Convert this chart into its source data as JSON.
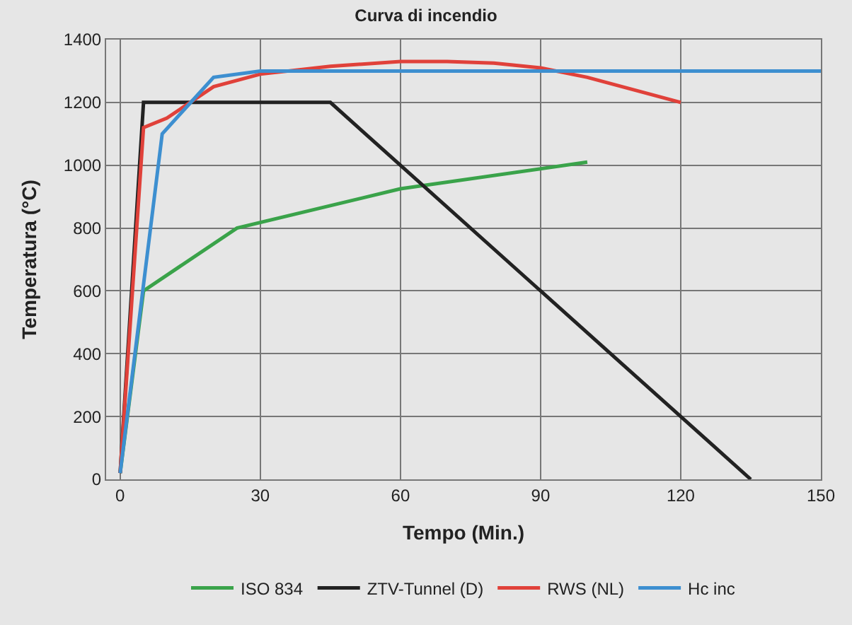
{
  "chart_data": {
    "type": "line",
    "title": "Curva di incendio",
    "xlabel": "Tempo (Min.)",
    "ylabel": "Temperatura (°C)",
    "xlim": [
      -3,
      150
    ],
    "xticks": [
      0,
      30,
      60,
      90,
      120,
      150
    ],
    "ylim": [
      0,
      1400
    ],
    "yticks": [
      0,
      200,
      400,
      600,
      800,
      1000,
      1200,
      1400
    ],
    "grid": true,
    "legend": "bottom",
    "marker": "none",
    "line_style": "solid",
    "series": [
      {
        "name": "ISO 834",
        "color": "#3aa34a",
        "x": [
          0,
          5,
          25,
          60,
          100
        ],
        "values": [
          20,
          600,
          800,
          925,
          1010
        ]
      },
      {
        "name": "ZTV-Tunnel (D)",
        "color": "#222222",
        "x": [
          0,
          5,
          45,
          135
        ],
        "values": [
          20,
          1200,
          1200,
          0
        ]
      },
      {
        "name": "RWS (NL)",
        "color": "#e0413a",
        "x": [
          0,
          5,
          10,
          20,
          30,
          45,
          60,
          70,
          80,
          90,
          100,
          110,
          120
        ],
        "values": [
          20,
          1120,
          1150,
          1250,
          1290,
          1315,
          1330,
          1330,
          1325,
          1310,
          1280,
          1240,
          1200
        ]
      },
      {
        "name": "Hc inc",
        "color": "#3d8fd0",
        "x": [
          0,
          9,
          20,
          30,
          150
        ],
        "values": [
          20,
          1100,
          1280,
          1300,
          1300
        ]
      }
    ]
  }
}
